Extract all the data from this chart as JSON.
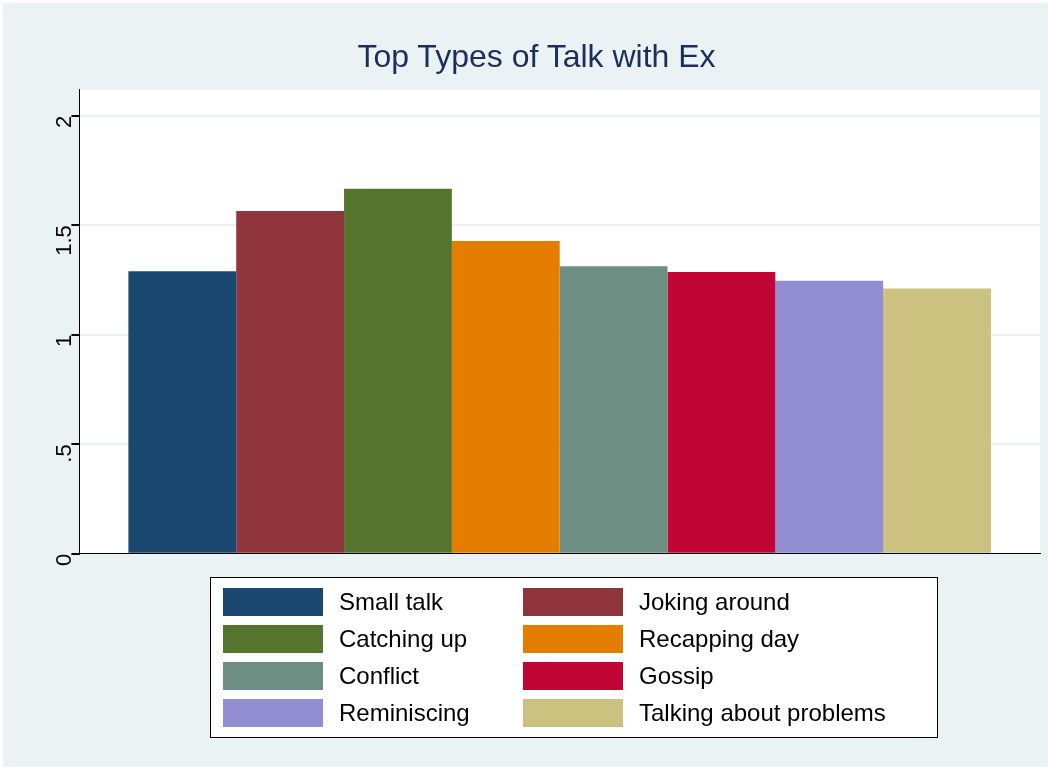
{
  "chart_data": {
    "type": "bar",
    "title": "Top Types of Talk with Ex",
    "categories": [
      null
    ],
    "series": [
      {
        "name": "Small talk",
        "color": "#1a476f",
        "values": [
          1.29
        ]
      },
      {
        "name": "Joking around",
        "color": "#90353b",
        "values": [
          1.565
        ]
      },
      {
        "name": "Catching up",
        "color": "#55752f",
        "values": [
          1.667
        ]
      },
      {
        "name": "Recapping day",
        "color": "#e37e00",
        "values": [
          1.428
        ]
      },
      {
        "name": "Conflict",
        "color": "#6e8e84",
        "values": [
          1.313
        ]
      },
      {
        "name": "Gossip",
        "color": "#c10534",
        "values": [
          1.286
        ]
      },
      {
        "name": "Reminiscing",
        "color": "#938dd2",
        "values": [
          1.246
        ]
      },
      {
        "name": "Talking about problems",
        "color": "#cac27e",
        "values": [
          1.211
        ]
      }
    ],
    "ylim": [
      0,
      2.12
    ],
    "yticks": [
      0,
      {
        "value": 0.5,
        "label": ".5"
      },
      1,
      1.5,
      2
    ],
    "grid": "y",
    "legend": "bottom"
  }
}
